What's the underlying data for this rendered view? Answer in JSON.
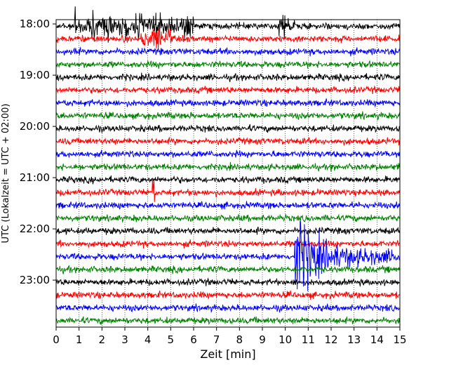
{
  "chart_data": {
    "type": "line",
    "chart_kind": "helicorder",
    "xlabel": "Zeit  [min]",
    "ylabel": "UTC (Lokalzeit = UTC + 02:00)",
    "xlim": [
      0,
      15
    ],
    "x_ticks": [
      "0",
      "1",
      "2",
      "3",
      "4",
      "5",
      "6",
      "7",
      "8",
      "9",
      "10",
      "11",
      "12",
      "13",
      "14",
      "15"
    ],
    "y_time_range_utc": [
      "17:55",
      "23:55"
    ],
    "trace_interval_min": 15,
    "y_tick_labels": [
      "18:00",
      "19:00",
      "20:00",
      "21:00",
      "22:00",
      "23:00"
    ],
    "trace_colors": [
      "#000000",
      "#ff0000",
      "#0000ff",
      "#008000"
    ],
    "color_cycle": [
      "black",
      "red",
      "blue",
      "green"
    ],
    "grid": "dotted vertical at each minute",
    "notable_events": [
      {
        "trace_start_utc": "18:10",
        "x_min": [
          0.8,
          6.0
        ],
        "desc": "large noise bursts"
      },
      {
        "trace_start_utc": "18:10",
        "x_min": [
          9.7,
          10.4
        ],
        "desc": "large burst"
      },
      {
        "trace_start_utc": "18:25",
        "x_min": [
          3.7,
          5.0
        ],
        "desc": "burst"
      },
      {
        "trace_start_utc": "21:25",
        "x_min": [
          4.2,
          4.3
        ],
        "desc": "spike"
      },
      {
        "trace_start_utc": "22:40",
        "x_min": [
          10.4,
          15.0
        ],
        "desc": "earthquake with decaying coda"
      }
    ]
  }
}
